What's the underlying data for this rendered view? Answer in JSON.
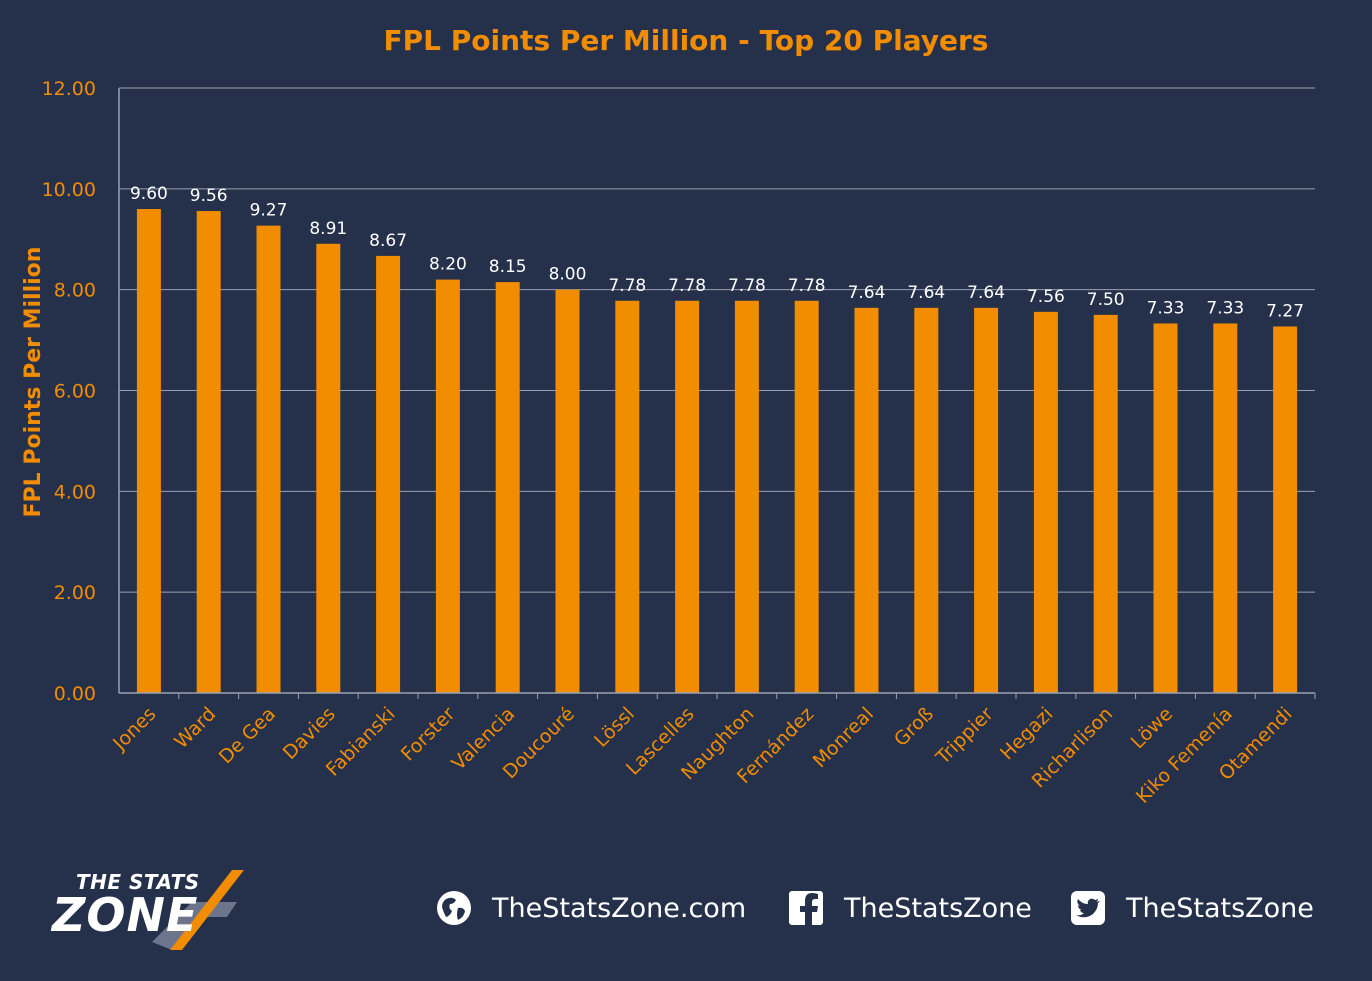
{
  "chart_data": {
    "type": "bar",
    "title": "FPL Points Per Million - Top 20 Players",
    "ylabel": "FPL Points Per Million",
    "xlabel": "",
    "ylim": [
      0,
      12
    ],
    "yticks": [
      "0.00",
      "2.00",
      "4.00",
      "6.00",
      "8.00",
      "10.00",
      "12.00"
    ],
    "grid": true,
    "categories": [
      "Jones",
      "Ward",
      "De Gea",
      "Davies",
      "Fabianski",
      "Forster",
      "Valencia",
      "Doucouré",
      "Lössl",
      "Lascelles",
      "Naughton",
      "Fernández",
      "Monreal",
      "Groß",
      "Trippier",
      "Hegazi",
      "Richarlison",
      "Löwe",
      "Kiko Femenía",
      "Otamendi"
    ],
    "values": [
      9.6,
      9.56,
      9.27,
      8.91,
      8.67,
      8.2,
      8.15,
      8.0,
      7.78,
      7.78,
      7.78,
      7.78,
      7.64,
      7.64,
      7.64,
      7.56,
      7.5,
      7.33,
      7.33,
      7.27
    ],
    "data_labels": [
      "9.60",
      "9.56",
      "9.27",
      "8.91",
      "8.67",
      "8.20",
      "8.15",
      "8.00",
      "7.78",
      "7.78",
      "7.78",
      "7.78",
      "7.64",
      "7.64",
      "7.64",
      "7.56",
      "7.50",
      "7.33",
      "7.33",
      "7.27"
    ],
    "colors": {
      "bar": "#f28c00",
      "background": "#25304a",
      "grid": "#9aa1ae",
      "label": "#ffffff",
      "axis_text": "#f28c00"
    }
  },
  "footer": {
    "logo_top": "THE STATS",
    "logo_bottom": "ZONE",
    "website": "TheStatsZone.com",
    "facebook": "TheStatsZone",
    "twitter": "TheStatsZone",
    "icons": [
      "globe-icon",
      "facebook-icon",
      "twitter-icon"
    ]
  }
}
